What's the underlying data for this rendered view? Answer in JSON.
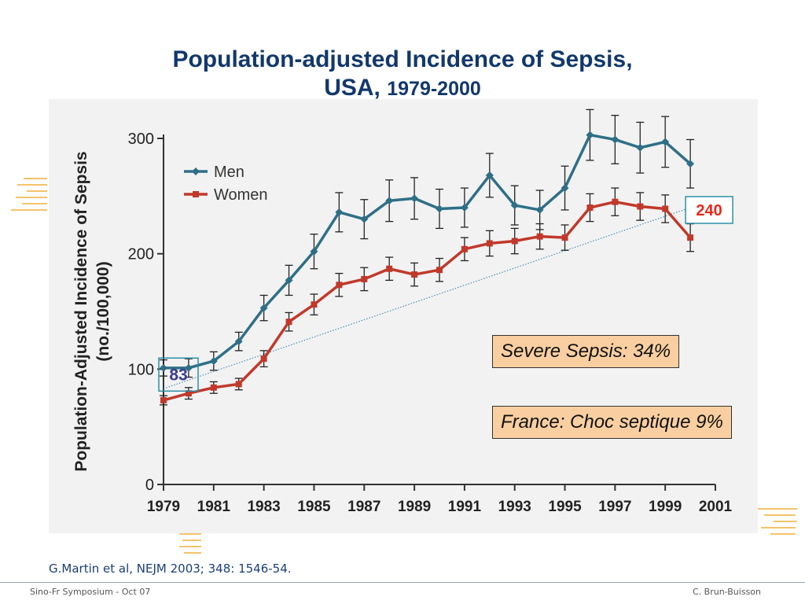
{
  "slide": {
    "title_line1": "Population-adjusted Incidence of Sepsis,",
    "title_line2_main": "USA,",
    "title_line2_years": "1979-2000",
    "citation": "G.Martin et al, NEJM 2003; 348: 1546-54.",
    "footer_left": "Sino-Fr Symposium - Oct  07",
    "footer_right": "C. Brun-Buisson",
    "callouts": {
      "severe_sepsis": "Severe Sepsis: 34%",
      "france": "France: Choc septique 9%"
    },
    "annotations": {
      "start_value": "83",
      "end_value": "240"
    }
  },
  "chart_data": {
    "type": "line",
    "title": "",
    "ylabel": "Population-Adjusted Incidence of Sepsis (no./100,000)",
    "xlabel": "",
    "xlim": [
      1979,
      2001
    ],
    "ylim": [
      0,
      300
    ],
    "x_ticks": [
      1979,
      1981,
      1983,
      1985,
      1987,
      1989,
      1991,
      1993,
      1995,
      1997,
      1999,
      2001
    ],
    "y_ticks": [
      0,
      100,
      200,
      300
    ],
    "legend_placement": "top-left",
    "grid": false,
    "x": [
      1979,
      1980,
      1981,
      1982,
      1983,
      1984,
      1985,
      1986,
      1987,
      1988,
      1989,
      1990,
      1991,
      1992,
      1993,
      1994,
      1995,
      1996,
      1997,
      1998,
      1999,
      2000
    ],
    "series": [
      {
        "name": "Men",
        "color": "#2f6f86",
        "marker": "diamond",
        "values": [
          101,
          101,
          107,
          124,
          153,
          177,
          202,
          236,
          230,
          246,
          248,
          239,
          240,
          268,
          242,
          238,
          257,
          303,
          299,
          292,
          297,
          278
        ],
        "errors": [
          7,
          8,
          8,
          8,
          11,
          13,
          15,
          17,
          17,
          18,
          18,
          17,
          17,
          19,
          17,
          17,
          19,
          22,
          21,
          22,
          22,
          21
        ]
      },
      {
        "name": "Women",
        "color": "#c0392b",
        "marker": "square",
        "values": [
          73,
          79,
          84,
          87,
          109,
          141,
          156,
          173,
          178,
          187,
          182,
          186,
          204,
          209,
          211,
          215,
          214,
          240,
          245,
          241,
          239,
          214
        ],
        "errors": [
          4,
          5,
          5,
          5,
          7,
          8,
          9,
          10,
          10,
          10,
          10,
          10,
          10,
          11,
          11,
          11,
          11,
          12,
          12,
          12,
          12,
          12
        ]
      }
    ],
    "trendline": {
      "from": [
        1979,
        83
      ],
      "to": [
        2000,
        240
      ],
      "color": "#4a90b8",
      "style": "dotted"
    }
  }
}
